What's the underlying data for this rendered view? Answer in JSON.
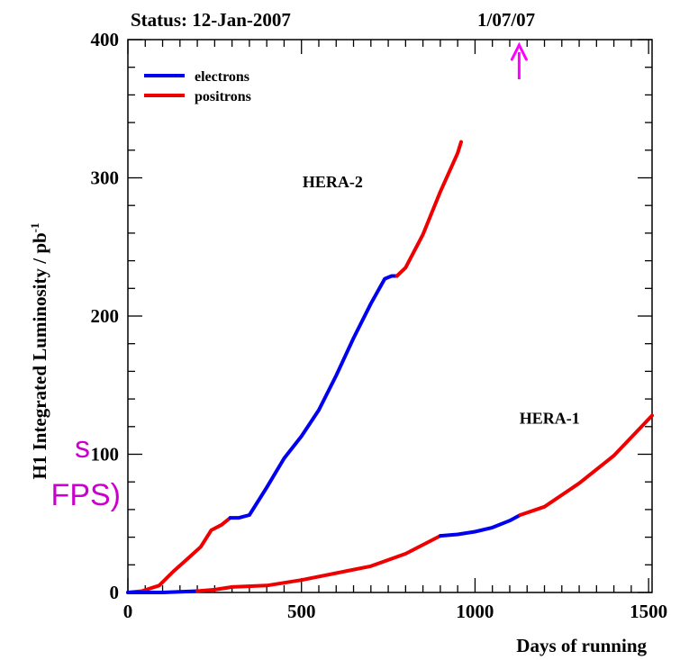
{
  "chart_data": {
    "type": "line",
    "title": "",
    "status_text": "Status:  12-Jan-2007",
    "xlabel": "Days of running",
    "ylabel": "H1 Integrated Luminosity / pb",
    "ylabel_superscript": "-1",
    "xlim": [
      0,
      1510
    ],
    "ylim": [
      0,
      400
    ],
    "xticks": [
      0,
      500,
      1000,
      1500
    ],
    "yticks": [
      0,
      100,
      200,
      300,
      400
    ],
    "grid": false,
    "legend_position": "top-left",
    "legend": [
      {
        "name": "electrons",
        "color": "#0000ee"
      },
      {
        "name": "positrons",
        "color": "#ee0000"
      }
    ],
    "marker": {
      "label": "1/07/07",
      "x": 1127,
      "color": "#ff00ff"
    },
    "side_text": [
      "s",
      "FPS)"
    ],
    "side_text_color": "#cc00cc",
    "annotations": [
      {
        "text": "HERA-2",
        "x": 590,
        "y": 297
      },
      {
        "text": "HERA-1",
        "x": 1215,
        "y": 126
      }
    ],
    "curves": [
      {
        "name": "HERA-2",
        "segments": [
          {
            "beam": "positrons",
            "x": [
              0,
              40,
              90,
              130,
              170,
              210,
              240,
              270,
              295
            ],
            "y": [
              0,
              1,
              5,
              15,
              24,
              33,
              45,
              49,
              54
            ]
          },
          {
            "beam": "electrons",
            "x": [
              295,
              320,
              350,
              400,
              450,
              500,
              550,
              600,
              650,
              700,
              740,
              760,
              775
            ],
            "y": [
              54,
              54,
              56,
              76,
              97,
              113,
              132,
              157,
              184,
              209,
              227,
              229,
              229
            ]
          },
          {
            "beam": "positrons",
            "x": [
              775,
              800,
              850,
              900,
              950,
              960
            ],
            "y": [
              229,
              235,
              259,
              290,
              318,
              326
            ]
          }
        ]
      },
      {
        "name": "HERA-1",
        "segments": [
          {
            "beam": "electrons",
            "x": [
              0,
              100,
              200
            ],
            "y": [
              0,
              0,
              1
            ]
          },
          {
            "beam": "positrons",
            "x": [
              200,
              250,
              300,
              400,
              500,
              600,
              700,
              800,
              900
            ],
            "y": [
              1,
              2,
              4,
              5,
              9,
              14,
              19,
              28,
              41
            ]
          },
          {
            "beam": "electrons",
            "x": [
              900,
              950,
              1000,
              1050,
              1100,
              1130
            ],
            "y": [
              41,
              42,
              44,
              47,
              52,
              56
            ]
          },
          {
            "beam": "positrons",
            "x": [
              1130,
              1200,
              1300,
              1400,
              1510
            ],
            "y": [
              56,
              62,
              79,
              99,
              128
            ]
          }
        ]
      }
    ]
  }
}
